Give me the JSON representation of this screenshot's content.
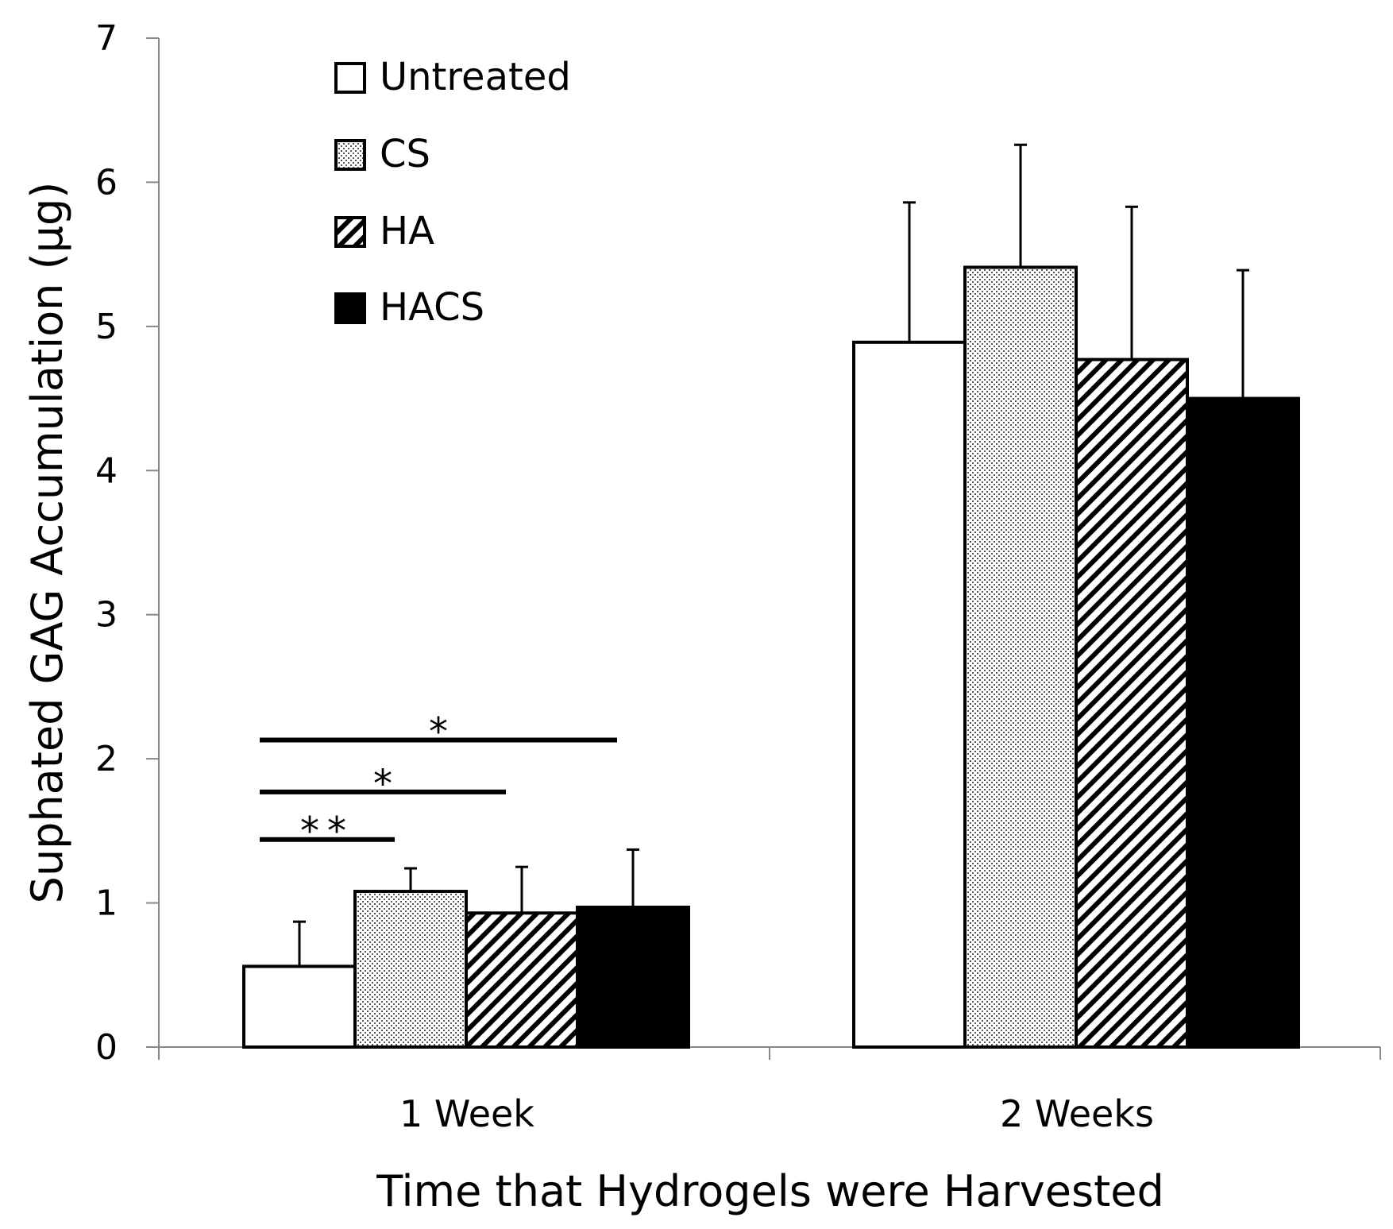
{
  "chart_data": {
    "type": "bar",
    "title": "",
    "xlabel": "Time that Hydrogels were Harvested",
    "ylabel": "Suphated GAG Accumulation (µg)",
    "ylim": [
      0,
      7
    ],
    "yticks": [
      "0",
      "1",
      "2",
      "3",
      "4",
      "5",
      "6",
      "7"
    ],
    "grid": false,
    "legend_position": "top-left",
    "categories": [
      "1 Week",
      "2 Weeks"
    ],
    "series": [
      {
        "name": "Untreated",
        "pattern": "solid-white",
        "values": [
          0.56,
          4.89
        ],
        "errors": [
          0.31,
          0.97
        ]
      },
      {
        "name": "CS",
        "pattern": "dotted",
        "values": [
          1.08,
          5.41
        ],
        "errors": [
          0.16,
          0.85
        ]
      },
      {
        "name": "HA",
        "pattern": "diagonal-hatch",
        "values": [
          0.93,
          4.77
        ],
        "errors": [
          0.32,
          1.06
        ]
      },
      {
        "name": "HACS",
        "pattern": "solid-black",
        "values": [
          0.97,
          4.5
        ],
        "errors": [
          0.4,
          0.89
        ]
      }
    ],
    "significance": [
      {
        "label": "*",
        "category": "1 Week",
        "from_series": "Untreated",
        "to_series": "HACS",
        "level": 2.13
      },
      {
        "label": "*",
        "category": "1 Week",
        "from_series": "Untreated",
        "to_series": "HA",
        "level": 1.77
      },
      {
        "label": "**",
        "category": "1 Week",
        "from_series": "Untreated",
        "to_series": "CS",
        "level": 1.44
      }
    ]
  }
}
